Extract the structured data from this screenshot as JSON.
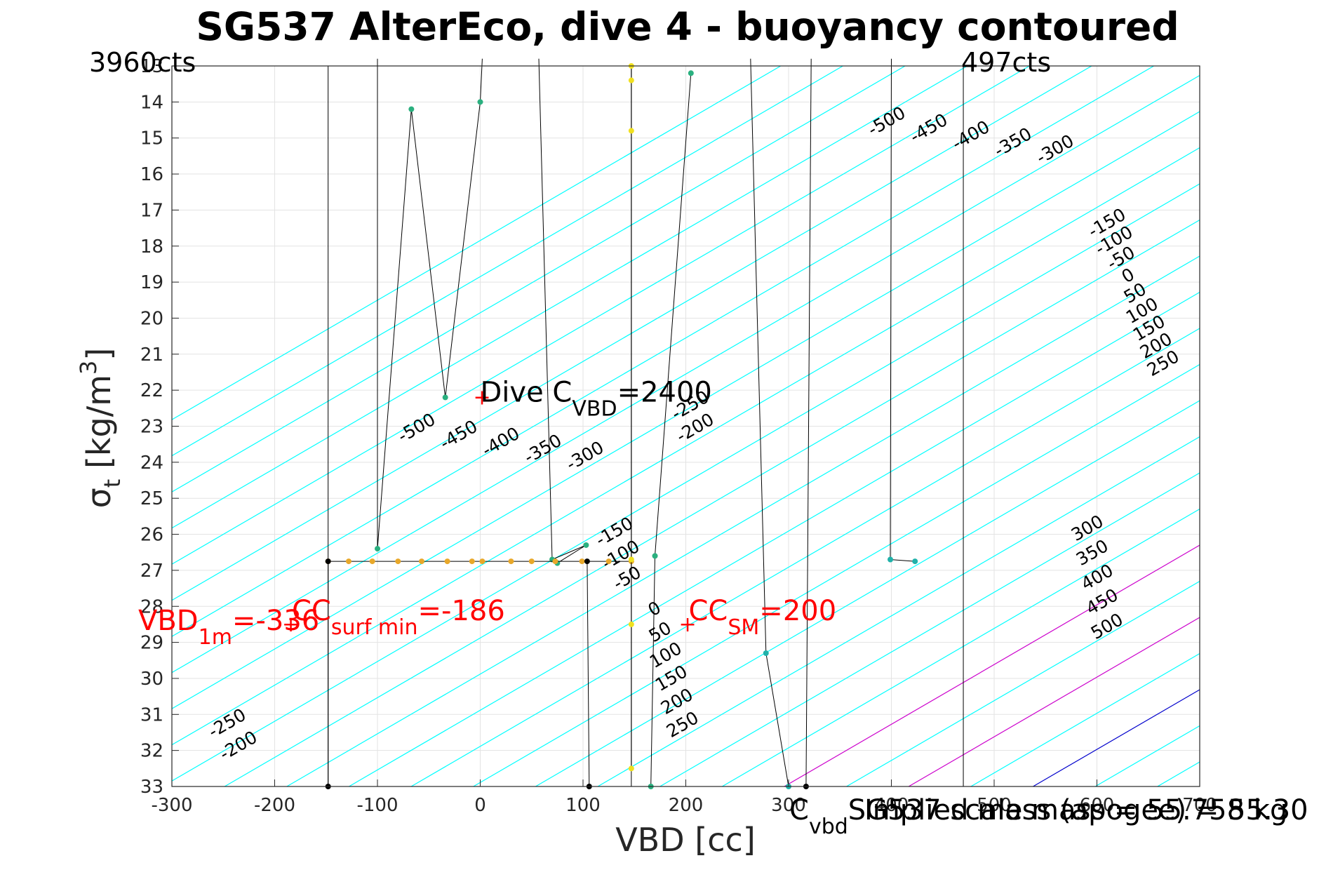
{
  "chart_data": {
    "type": "line",
    "title": "SG537 AlterEco, dive 4 - buoyancy contoured",
    "xlabel": "VBD [cc]",
    "ylabel": "σ_t [kg/m^3]",
    "xlim": [
      -300,
      700
    ],
    "ylim": [
      13,
      33
    ],
    "y_reversed": true,
    "grid": true,
    "x_ticks": [
      -300,
      -200,
      -100,
      0,
      100,
      200,
      300,
      400,
      500,
      600,
      700
    ],
    "y_ticks": [
      13,
      14,
      15,
      16,
      17,
      18,
      19,
      20,
      21,
      22,
      23,
      24,
      25,
      26,
      27,
      28,
      29,
      30,
      31,
      32,
      33
    ],
    "top_left_label": "3960cts",
    "top_right_label": "497cts",
    "contour_color": "#00ffff",
    "zero_contour_color": "#0000cc",
    "sm_contour_color": "#cc00cc",
    "buoyancy_contours": [
      {
        "label": "-500"
      },
      {
        "label": "-450"
      },
      {
        "label": "-400"
      },
      {
        "label": "-350"
      },
      {
        "label": "-300"
      },
      {
        "label": "-250"
      },
      {
        "label": "-200"
      },
      {
        "label": "-150"
      },
      {
        "label": "-100"
      },
      {
        "label": "-50"
      },
      {
        "label": "0"
      },
      {
        "label": "50"
      },
      {
        "label": "100"
      },
      {
        "label": "150"
      },
      {
        "label": "200"
      },
      {
        "label": "250"
      },
      {
        "label": "300"
      },
      {
        "label": "350"
      },
      {
        "label": "400"
      },
      {
        "label": "450"
      },
      {
        "label": "500"
      }
    ],
    "vertical_lines_vbd": [
      -148,
      147,
      470
    ],
    "series": [
      {
        "color": "#2ab07f",
        "points": [
          [
            -100,
            12.8
          ],
          [
            -100,
            26.4
          ],
          [
            -67,
            14.2
          ],
          [
            -34,
            22.2
          ],
          [
            0,
            14.0
          ],
          [
            2,
            12.8
          ]
        ]
      },
      {
        "color": "#2ab07f",
        "points": [
          [
            57,
            12.8
          ],
          [
            70,
            26.7
          ],
          [
            103,
            26.3
          ],
          [
            75,
            26.8
          ]
        ]
      },
      {
        "color": "#2ab07f",
        "points": [
          [
            205,
            13.2
          ],
          [
            170,
            26.6
          ],
          [
            166,
            33
          ]
        ]
      },
      {
        "color": "#20b2aa",
        "points": [
          [
            263,
            12.8
          ],
          [
            278,
            29.3
          ],
          [
            300,
            33
          ]
        ]
      },
      {
        "color": "#000000",
        "points": [
          [
            322,
            12.8
          ],
          [
            317,
            33
          ]
        ]
      },
      {
        "color": "#20b2aa",
        "points": [
          [
            400,
            12.8
          ],
          [
            399,
            26.7
          ],
          [
            423,
            26.75
          ]
        ]
      },
      {
        "color": "#e8a82a",
        "points": [
          [
            -148,
            26.75
          ],
          [
            -128,
            26.75
          ],
          [
            -105,
            26.75
          ],
          [
            -80,
            26.75
          ],
          [
            -57,
            26.75
          ],
          [
            -32,
            26.75
          ],
          [
            -8,
            26.75
          ],
          [
            2,
            26.75
          ],
          [
            30,
            26.75
          ],
          [
            50,
            26.75
          ],
          [
            73,
            26.75
          ],
          [
            99,
            26.75
          ],
          [
            125,
            26.75
          ],
          [
            147,
            26.75
          ]
        ]
      },
      {
        "color": "#000000",
        "points": [
          [
            -148,
            26.75
          ],
          [
            -148,
            33
          ]
        ]
      },
      {
        "color": "#000000",
        "points": [
          [
            104,
            26.75
          ],
          [
            106,
            33
          ]
        ]
      },
      {
        "color": "#f0e020",
        "points": [
          [
            147,
            13.0
          ],
          [
            147,
            13.4
          ],
          [
            147,
            14.8
          ],
          [
            147,
            26.7
          ],
          [
            147,
            28.5
          ],
          [
            147,
            32.5
          ]
        ]
      }
    ],
    "markers": [
      {
        "label": "Dive C",
        "sub": "VBD",
        "value": "=2400",
        "color": "#000000",
        "x": 0,
        "y": 22.2
      },
      {
        "label": "CC",
        "sub": "SM",
        "value": "=200",
        "color": "#ff0000",
        "x": 200,
        "y": 28.5
      },
      {
        "label": "CC",
        "sub": "surf min",
        "value": "=-186",
        "color": "#ff0000",
        "x": -186,
        "y": 28.5
      }
    ],
    "vbd_1m": {
      "label": "VBD",
      "sub": "1m",
      "value": "=-336",
      "color": "#ff0000"
    },
    "bottom_annotation_1": {
      "label": "C",
      "sub": "vbd",
      "value": "SG537 scale mass = 55.758 kg"
    },
    "bottom_annotation_2": {
      "value": "Implied mass (apogee) = 55.30"
    }
  }
}
